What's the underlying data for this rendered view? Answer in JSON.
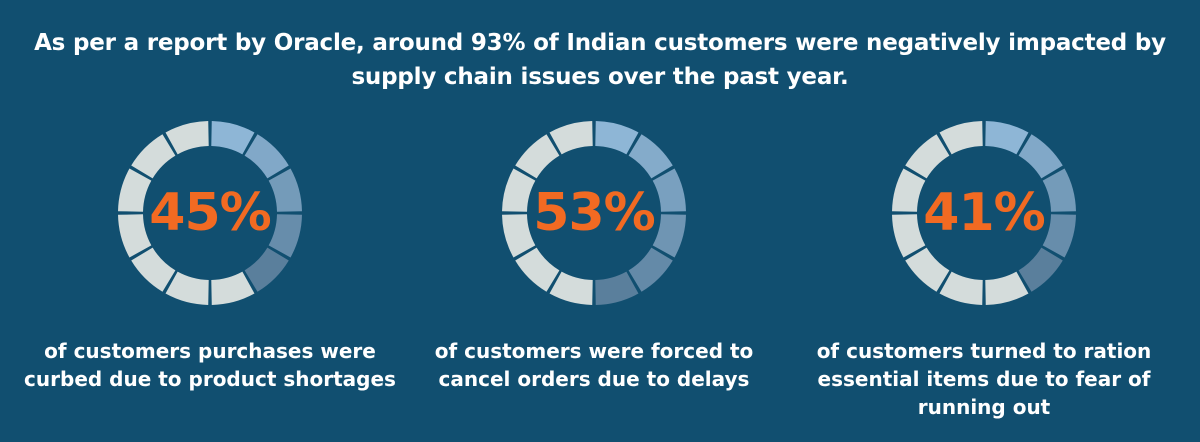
{
  "headline": {
    "line1": "As per a report by Oracle, around 93% of Indian customers were negatively impacted by",
    "line2": "supply chain issues over the past year."
  },
  "colors": {
    "background": "#114f70",
    "accent_text": "#f26a22",
    "segment_inactive": "#d4dcdb",
    "segment_active_light": "#8eb6d6",
    "segment_active_dark": "#5a7f9c"
  },
  "chart_data": [
    {
      "type": "pie",
      "values": [
        45
      ],
      "value_label": "45%",
      "caption": [
        "of customers purchases were",
        "curbed due to product shortages"
      ]
    },
    {
      "type": "pie",
      "values": [
        53
      ],
      "value_label": "53%",
      "caption": [
        "of customers were forced to",
        "cancel orders due to delays"
      ]
    },
    {
      "type": "pie",
      "values": [
        41
      ],
      "value_label": "41%",
      "caption": [
        "of customers turned to ration",
        "essential items due to fear of",
        "running out"
      ]
    }
  ]
}
